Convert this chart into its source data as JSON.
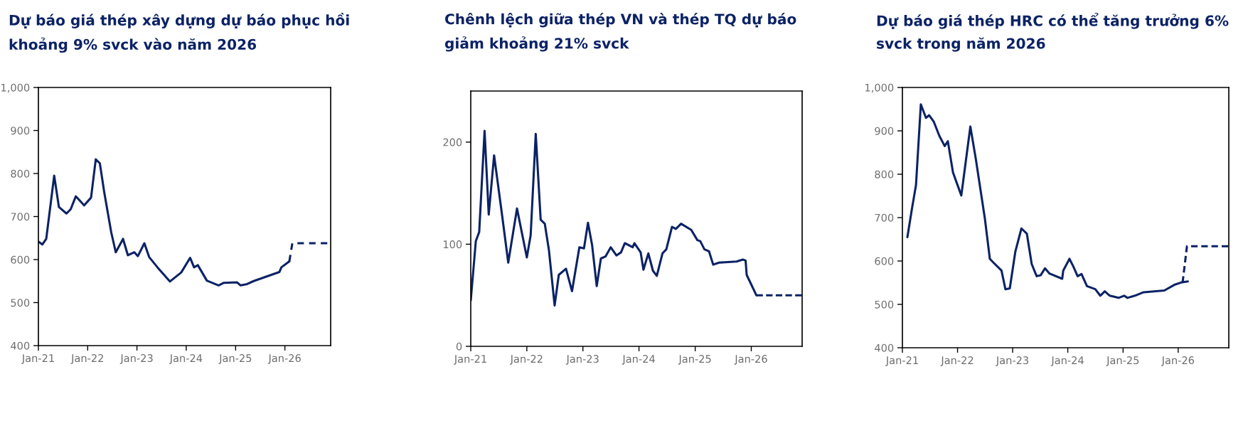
{
  "chart_data": [
    {
      "type": "line",
      "title": "Dự báo giá thép xây dựng dự báo phục hồi\nkhoảng 9% svck vào năm 2026",
      "xlim": [
        "2021-01-01",
        "2026-12-06"
      ],
      "xticks": [
        {
          "value": "2021-01-01",
          "label": "Jan-21"
        },
        {
          "value": "2022-01-01",
          "label": "Jan-22"
        },
        {
          "value": "2023-01-01",
          "label": "Jan-23"
        },
        {
          "value": "2024-01-01",
          "label": "Jan-24"
        },
        {
          "value": "2025-01-01",
          "label": "Jan-25"
        },
        {
          "value": "2026-01-01",
          "label": "Jan-26"
        }
      ],
      "ylim": [
        400,
        1000
      ],
      "yticks": [
        400,
        500,
        600,
        700,
        800,
        900,
        {
          "value": 1000,
          "label": "1,000"
        }
      ],
      "grid": false,
      "legend": false,
      "series": [
        {
          "color": "#0b2265",
          "line_style": "solid",
          "x": [
            "2021-01-01",
            "2021-01-30",
            "2021-02-28",
            "2021-04-28",
            "2021-06-02",
            "2021-07-28",
            "2021-08-28",
            "2021-10-05",
            "2021-12-06",
            "2022-01-26",
            "2022-03-02",
            "2022-04-01",
            "2022-05-03",
            "2022-06-24",
            "2022-07-28",
            "2022-09-20",
            "2022-10-26",
            "2022-12-13",
            "2023-01-08",
            "2023-02-25",
            "2023-04-01",
            "2023-06-02",
            "2023-09-02",
            "2023-11-25",
            "2024-01-30",
            "2024-02-28",
            "2024-03-27",
            "2024-06-02",
            "2024-08-28",
            "2024-10-05",
            "2025-01-12",
            "2025-02-07",
            "2025-03-27",
            "2025-05-14",
            "2025-11-21",
            "2025-12-06",
            "2026-02-03"
          ],
          "values": [
            642,
            635,
            648,
            795,
            722,
            707,
            717,
            747,
            726,
            744,
            833,
            824,
            758,
            664,
            617,
            648,
            610,
            617,
            608,
            638,
            606,
            582,
            549,
            570,
            604,
            582,
            587,
            551,
            540,
            546,
            547,
            540,
            543,
            550,
            571,
            582,
            596
          ]
        },
        {
          "color": "#0b2265",
          "line_style": "dashed",
          "x": [
            "2026-02-03",
            "2026-02-25",
            "2026-11-11"
          ],
          "values": [
            596,
            638,
            638
          ]
        }
      ]
    },
    {
      "type": "line",
      "title": "Chênh lệch giữa thép VN và thép TQ dự báo\ngiảm khoảng 21% svck",
      "xlim": [
        "2021-01-01",
        "2026-11-28"
      ],
      "xticks": [
        {
          "value": "2021-01-01",
          "label": "Jan-21"
        },
        {
          "value": "2022-01-01",
          "label": "Jan-22"
        },
        {
          "value": "2023-01-01",
          "label": "Jan-23"
        },
        {
          "value": "2024-01-01",
          "label": "Jan-24"
        },
        {
          "value": "2025-01-01",
          "label": "Jan-25"
        },
        {
          "value": "2026-01-01",
          "label": "Jan-26"
        }
      ],
      "ylim": [
        0,
        250
      ],
      "yticks": [
        0,
        100,
        200
      ],
      "grid": false,
      "legend": false,
      "series": [
        {
          "color": "#0b2265",
          "line_style": "solid",
          "x": [
            "2021-01-01",
            "2021-02-03",
            "2021-02-25",
            "2021-04-01",
            "2021-04-28",
            "2021-06-02",
            "2021-07-26",
            "2021-09-02",
            "2021-10-29",
            "2022-01-01",
            "2022-01-26",
            "2022-02-28",
            "2022-04-01",
            "2022-04-28",
            "2022-05-25",
            "2022-07-01",
            "2022-07-28",
            "2022-09-13",
            "2022-10-22",
            "2022-12-09",
            "2023-01-08",
            "2023-02-03",
            "2023-03-02",
            "2023-04-01",
            "2023-04-28",
            "2023-05-28",
            "2023-07-01",
            "2023-08-07",
            "2023-09-06",
            "2023-10-01",
            "2023-11-21",
            "2023-12-02",
            "2024-01-12",
            "2024-01-30",
            "2024-03-02",
            "2024-04-01",
            "2024-04-26",
            "2024-06-02",
            "2024-06-27",
            "2024-08-03",
            "2024-08-28",
            "2024-10-01",
            "2024-12-06",
            "2025-01-15",
            "2025-02-03",
            "2025-03-02",
            "2025-04-01",
            "2025-04-28",
            "2025-06-06",
            "2025-09-27",
            "2025-11-07",
            "2025-11-25",
            "2025-12-02",
            "2026-02-03"
          ],
          "values": [
            45,
            103,
            112,
            211,
            129,
            187,
            126,
            82,
            135,
            87,
            109,
            208,
            124,
            120,
            94,
            40,
            70,
            76,
            54,
            97,
            96,
            121,
            99,
            59,
            86,
            88,
            97,
            89,
            92,
            101,
            97,
            101,
            92,
            75,
            91,
            74,
            69,
            91,
            95,
            117,
            115,
            120,
            114,
            104,
            103,
            95,
            93,
            80,
            82,
            83,
            85,
            84,
            70,
            50
          ]
        },
        {
          "color": "#0b2265",
          "line_style": "dashed",
          "x": [
            "2026-02-03",
            "2026-11-25"
          ],
          "values": [
            50,
            50
          ]
        }
      ]
    },
    {
      "type": "line",
      "title": "Dự báo giá thép HRC có thể tăng trưởng 6%\nsvck trong năm 2026",
      "xlim": [
        "2021-01-01",
        "2026-12-02"
      ],
      "xticks": [
        {
          "value": "2021-01-01",
          "label": "Jan-21"
        },
        {
          "value": "2022-01-01",
          "label": "Jan-22"
        },
        {
          "value": "2023-01-01",
          "label": "Jan-23"
        },
        {
          "value": "2024-01-01",
          "label": "Jan-24"
        },
        {
          "value": "2025-01-01",
          "label": "Jan-25"
        },
        {
          "value": "2026-01-01",
          "label": "Jan-26"
        }
      ],
      "ylim": [
        400,
        1000
      ],
      "yticks": [
        400,
        500,
        600,
        700,
        800,
        900,
        {
          "value": 1000,
          "label": "1,000"
        }
      ],
      "grid": false,
      "legend": false,
      "series": [
        {
          "color": "#0b2265",
          "line_style": "solid",
          "x": [
            "2021-02-03",
            "2021-03-06",
            "2021-04-01",
            "2021-05-03",
            "2021-06-06",
            "2021-06-27",
            "2021-07-28",
            "2021-09-02",
            "2021-10-08",
            "2021-10-29",
            "2021-12-02",
            "2022-01-26",
            "2022-03-27",
            "2022-05-03",
            "2022-07-01",
            "2022-08-03",
            "2022-08-28",
            "2022-10-19",
            "2022-11-14",
            "2022-12-13",
            "2023-01-19",
            "2023-02-28",
            "2023-04-05",
            "2023-05-07",
            "2023-06-09",
            "2023-07-05",
            "2023-08-03",
            "2023-09-02",
            "2023-11-25",
            "2023-12-02",
            "2024-01-12",
            "2024-02-07",
            "2024-03-06",
            "2024-04-01",
            "2024-05-07",
            "2024-07-01",
            "2024-08-03",
            "2024-09-02",
            "2024-10-05",
            "2024-12-02",
            "2025-01-08",
            "2025-01-30",
            "2025-03-20",
            "2025-05-17",
            "2025-10-01",
            "2025-12-06",
            "2026-01-26",
            "2026-03-06"
          ],
          "values": [
            655,
            722,
            775,
            961,
            930,
            936,
            921,
            889,
            865,
            876,
            804,
            751,
            910,
            833,
            698,
            605,
            596,
            578,
            535,
            537,
            622,
            675,
            663,
            593,
            565,
            567,
            583,
            571,
            559,
            578,
            605,
            587,
            565,
            570,
            542,
            535,
            520,
            530,
            520,
            515,
            520,
            515,
            520,
            528,
            532,
            545,
            551,
            553
          ]
        },
        {
          "color": "#0b2265",
          "line_style": "dashed",
          "x": [
            "2026-01-30",
            "2026-02-28",
            "2026-11-28"
          ],
          "values": [
            550,
            634,
            634
          ]
        }
      ]
    }
  ]
}
